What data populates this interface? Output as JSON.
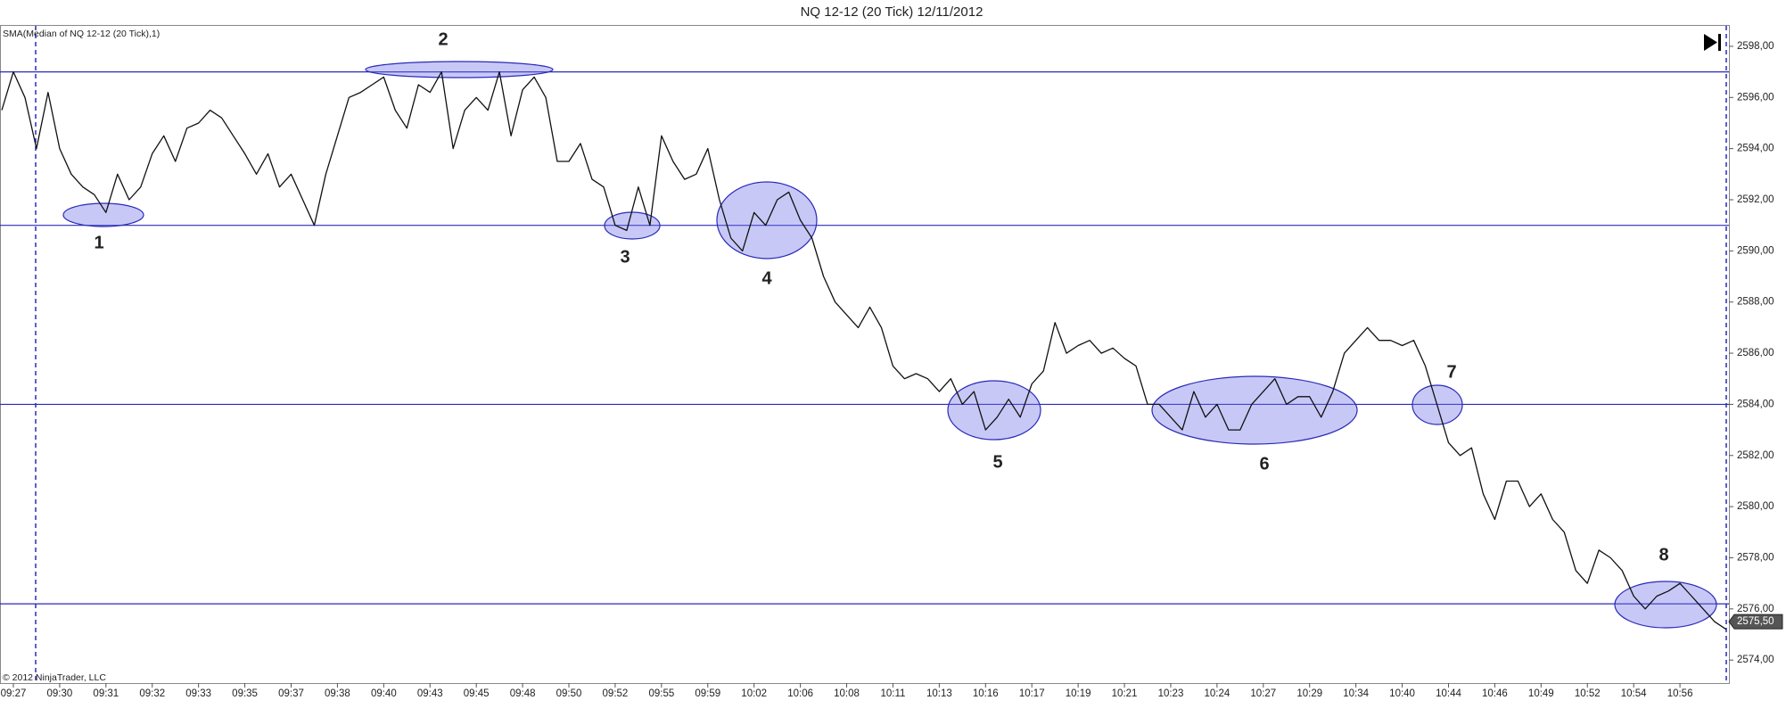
{
  "chart_data": {
    "type": "line",
    "title": "NQ 12-12 (20 Tick)  12/11/2012",
    "legend_text": "SMA(Median of NQ 12-12 (20 Tick),1)",
    "copyright": "© 2012 NinjaTrader, LLC",
    "categories": [
      null,
      "09:27",
      null,
      null,
      null,
      "09:30",
      null,
      null,
      null,
      "09:31",
      null,
      null,
      null,
      "09:32",
      null,
      null,
      null,
      "09:33",
      null,
      null,
      null,
      "09:35",
      null,
      null,
      null,
      "09:37",
      null,
      null,
      null,
      "09:38",
      null,
      null,
      null,
      "09:40",
      null,
      null,
      null,
      "09:43",
      null,
      null,
      null,
      "09:45",
      null,
      null,
      null,
      "09:48",
      null,
      null,
      null,
      "09:50",
      null,
      null,
      null,
      "09:52",
      null,
      null,
      null,
      "09:55",
      null,
      null,
      null,
      "09:59",
      null,
      null,
      null,
      "10:02",
      null,
      null,
      null,
      "10:06",
      null,
      null,
      null,
      "10:08",
      null,
      null,
      null,
      "10:11",
      null,
      null,
      null,
      "10:13",
      null,
      null,
      null,
      "10:16",
      null,
      null,
      null,
      "10:17",
      null,
      null,
      null,
      "10:19",
      null,
      null,
      null,
      "10:21",
      null,
      null,
      null,
      "10:23",
      null,
      null,
      null,
      "10:24",
      null,
      null,
      null,
      "10:27",
      null,
      null,
      null,
      "10:29",
      null,
      null,
      null,
      "10:34",
      null,
      null,
      null,
      "10:40",
      null,
      null,
      null,
      "10:44",
      null,
      null,
      null,
      "10:46",
      null,
      null,
      null,
      "10:49",
      null,
      null,
      null,
      "10:52",
      null,
      null,
      null,
      "10:54",
      null,
      null,
      null,
      "10:56",
      null,
      null,
      null,
      null
    ],
    "series": [
      {
        "name": "SMA(Median of NQ 12-12 (20 Tick),1)",
        "color": "#111111",
        "values": [
          2595.5,
          2597,
          2596,
          2594,
          2596.2,
          2594,
          2593,
          2592.5,
          2592.2,
          2591.5,
          2593,
          2592,
          2592.5,
          2593.8,
          2594.5,
          2593.5,
          2594.8,
          2595,
          2595.5,
          2595.2,
          2594.5,
          2593.8,
          2593,
          2593.8,
          2592.5,
          2593,
          2592,
          2591,
          2593,
          2594.5,
          2596,
          2596.2,
          2596.5,
          2596.8,
          2595.5,
          2594.8,
          2596.5,
          2596.2,
          2597,
          2594,
          2595.5,
          2596,
          2595.5,
          2597,
          2594.5,
          2596.3,
          2596.8,
          2596,
          2593.5,
          2593.5,
          2594.2,
          2592.8,
          2592.5,
          2591,
          2590.8,
          2592.5,
          2591,
          2594.5,
          2593.5,
          2592.8,
          2593,
          2594,
          2592,
          2590.5,
          2590,
          2591.5,
          2591,
          2592,
          2592.3,
          2591.2,
          2590.5,
          2589,
          2588,
          2587.5,
          2587,
          2587.8,
          2587,
          2585.5,
          2585,
          2585.2,
          2585,
          2584.5,
          2585,
          2584,
          2584.5,
          2583,
          2583.5,
          2584.2,
          2583.5,
          2584.8,
          2585.3,
          2587.2,
          2586,
          2586.3,
          2586.5,
          2586,
          2586.2,
          2585.8,
          2585.5,
          2584,
          2584,
          2583.5,
          2583,
          2584.5,
          2583.5,
          2584,
          2583,
          2583,
          2584,
          2584.5,
          2585,
          2584,
          2584.3,
          2584.3,
          2583.5,
          2584.5,
          2586,
          2586.5,
          2587,
          2586.5,
          2586.5,
          2586.3,
          2586.5,
          2585.5,
          2584,
          2582.5,
          2582,
          2582.3,
          2580.5,
          2579.5,
          2581,
          2581,
          2580,
          2580.5,
          2579.5,
          2579,
          2577.5,
          2577,
          2578.3,
          2578,
          2577.5,
          2576.5,
          2576,
          2576.5,
          2576.7,
          2577,
          2576.5,
          2576,
          2575.5,
          2575.2
        ]
      }
    ],
    "levels": [
      2597,
      2591,
      2584,
      2576.2
    ],
    "level_color": "#2a2ab8",
    "last_price": {
      "value": 2575.5,
      "label": "2575,50"
    },
    "annotations": [
      {
        "label": "1"
      },
      {
        "label": "2"
      },
      {
        "label": "3"
      },
      {
        "label": "4"
      },
      {
        "label": "5"
      },
      {
        "label": "6"
      },
      {
        "label": "7"
      },
      {
        "label": "8"
      }
    ],
    "ylim": [
      2573.1,
      2598.8
    ],
    "yticks": [
      {
        "value": 2574,
        "label": "2574,00"
      },
      {
        "value": 2576,
        "label": "2576,00"
      },
      {
        "value": 2578,
        "label": "2578,00"
      },
      {
        "value": 2580,
        "label": "2580,00"
      },
      {
        "value": 2582,
        "label": "2582,00"
      },
      {
        "value": 2584,
        "label": "2584,00"
      },
      {
        "value": 2586,
        "label": "2586,00"
      },
      {
        "value": 2588,
        "label": "2588,00"
      },
      {
        "value": 2590,
        "label": "2590,00"
      },
      {
        "value": 2592,
        "label": "2592,00"
      },
      {
        "value": 2594,
        "label": "2594,00"
      },
      {
        "value": 2596,
        "label": "2596,00"
      },
      {
        "value": 2598,
        "label": "2598,00"
      }
    ],
    "grid": false
  }
}
